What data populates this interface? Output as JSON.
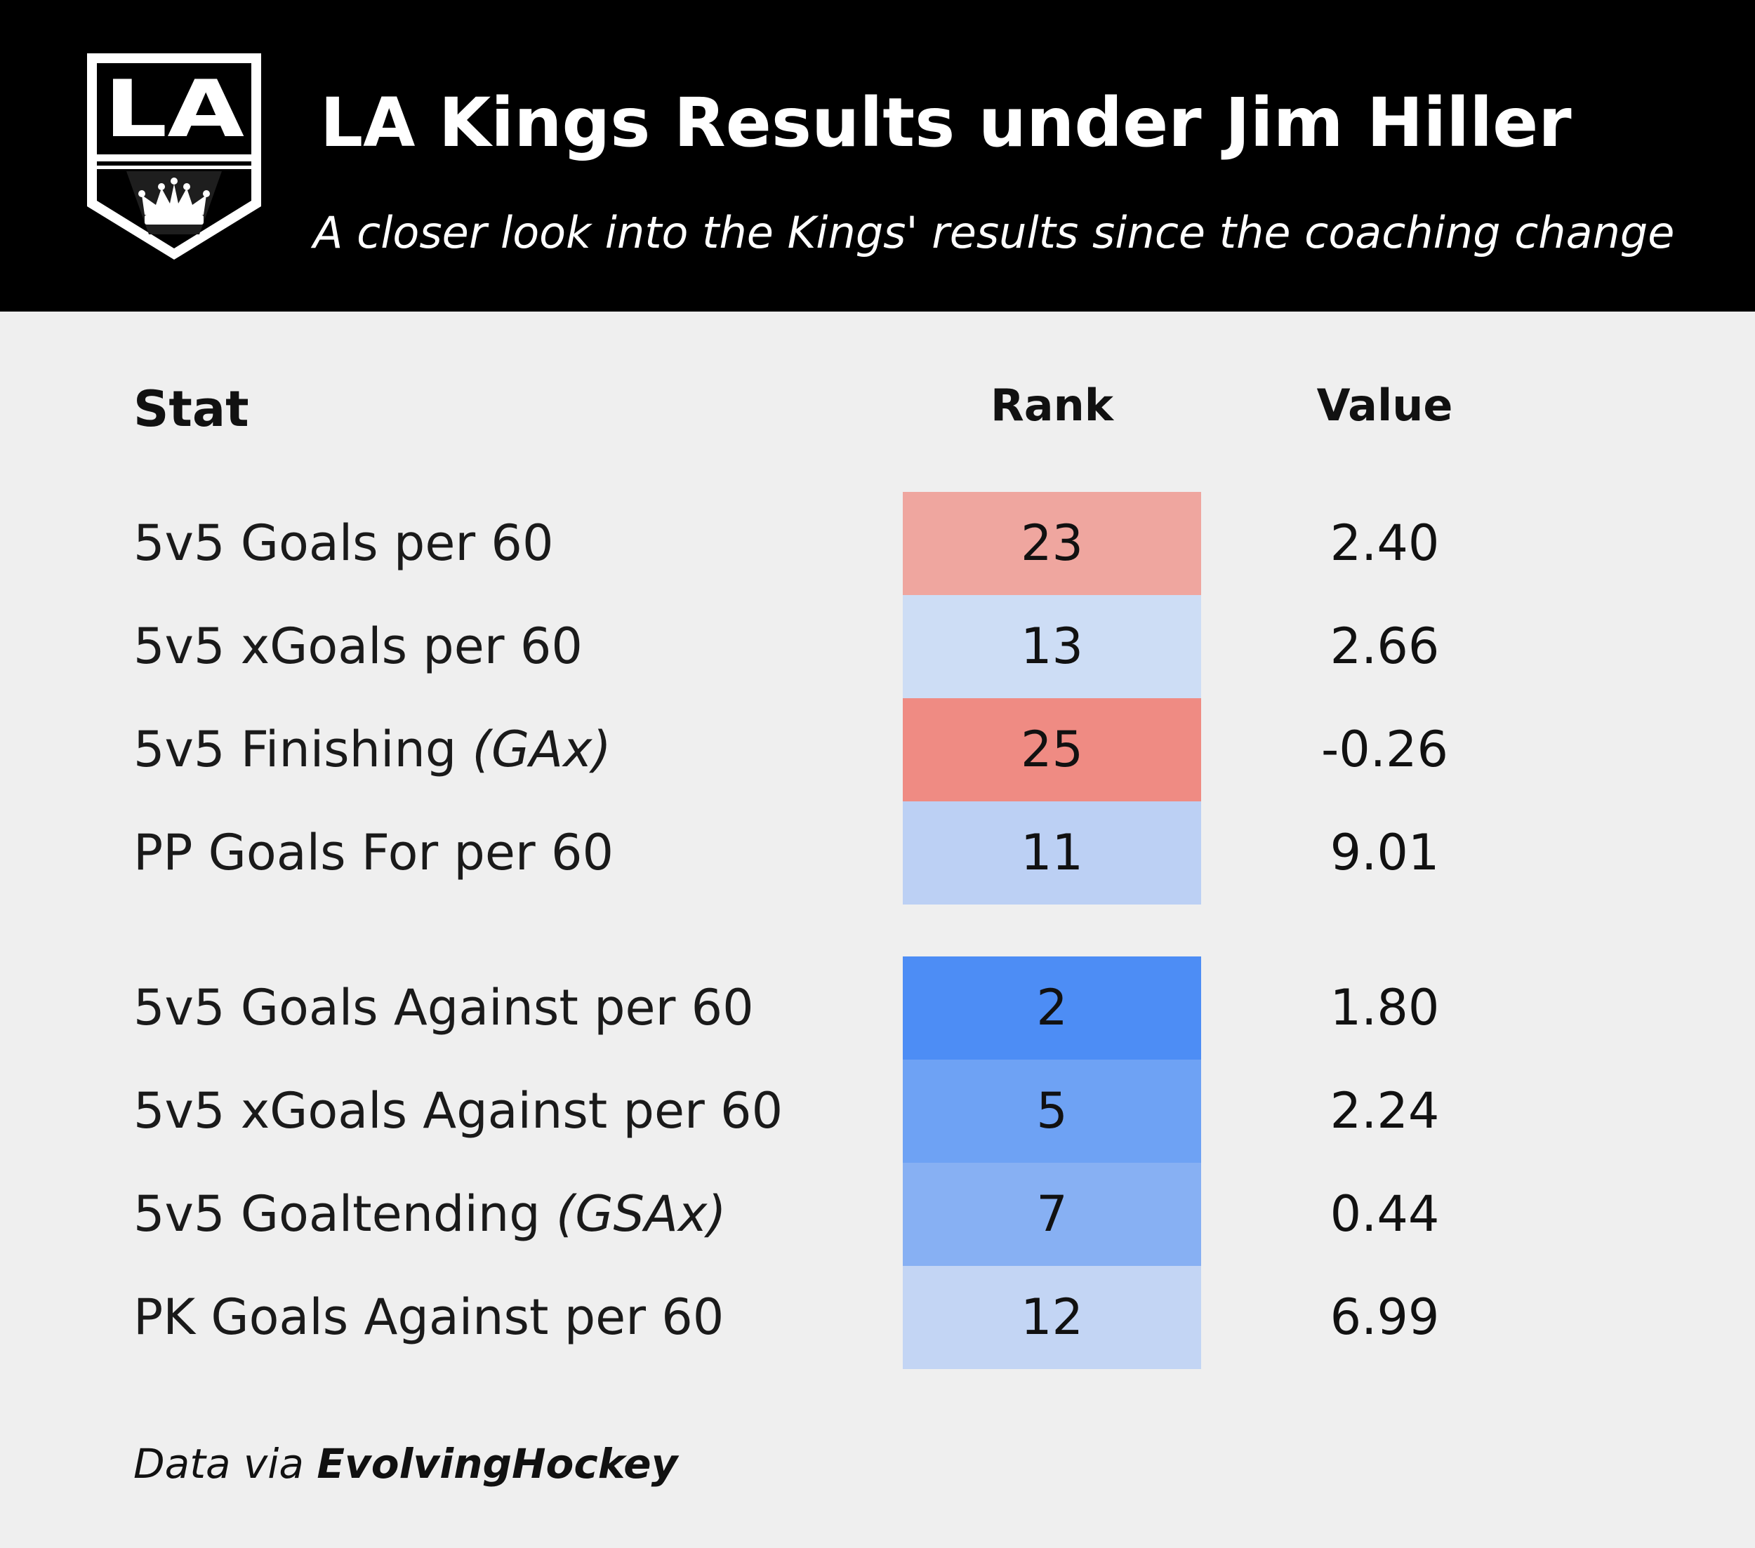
{
  "header": {
    "title": "LA Kings Results under Jim Hiller",
    "subtitle": "A closer look into the Kings' results since the coaching change",
    "logo_text": "LA",
    "logo_icon": "la-kings-crown-shield-icon"
  },
  "columns": {
    "stat": "Stat",
    "rank": "Rank",
    "value": "Value"
  },
  "chart_data": {
    "type": "table",
    "columns": [
      "Stat",
      "Rank",
      "Value"
    ],
    "groups": [
      {
        "rows": [
          {
            "stat": "5v5 Goals per 60",
            "stat_note": "",
            "rank": "23",
            "value": "2.40",
            "rank_color": "#efa69f"
          },
          {
            "stat": "5v5 xGoals per 60",
            "stat_note": "",
            "rank": "13",
            "value": "2.66",
            "rank_color": "#cdddf5"
          },
          {
            "stat": "5v5 Finishing",
            "stat_note": "(GAx)",
            "rank": "25",
            "value": "-0.26",
            "rank_color": "#ef8b83"
          },
          {
            "stat": "PP Goals For per 60",
            "stat_note": "",
            "rank": "11",
            "value": "9.01",
            "rank_color": "#bcd0f4"
          }
        ]
      },
      {
        "rows": [
          {
            "stat": "5v5 Goals Against per 60",
            "stat_note": "",
            "rank": "2",
            "value": "1.80",
            "rank_color": "#4d8df5"
          },
          {
            "stat": "5v5 xGoals Against per 60",
            "stat_note": "",
            "rank": "5",
            "value": "2.24",
            "rank_color": "#6ea2f4"
          },
          {
            "stat": "5v5 Goaltending",
            "stat_note": "(GSAx)",
            "rank": "7",
            "value": "0.44",
            "rank_color": "#87b0f3"
          },
          {
            "stat": "PK Goals Against per 60",
            "stat_note": "",
            "rank": "12",
            "value": "6.99",
            "rank_color": "#c3d5f4"
          }
        ]
      }
    ]
  },
  "footer": {
    "prefix": "Data via ",
    "source": "EvolvingHockey"
  }
}
